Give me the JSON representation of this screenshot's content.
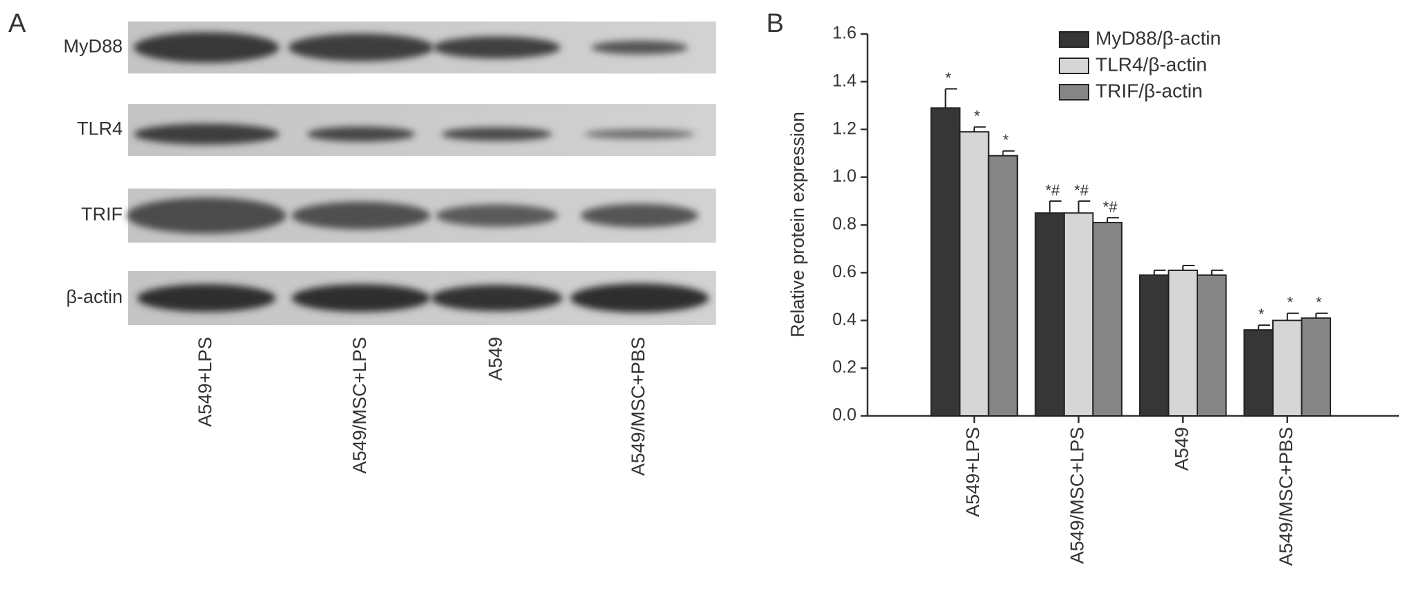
{
  "blot": {
    "panel_label": "A",
    "rows": [
      "MyD88",
      "TLR4",
      "TRIF",
      "β-actin"
    ],
    "lanes": [
      "A549+LPS",
      "A549/MSC+LPS",
      "A549",
      "A549/MSC+PBS"
    ]
  },
  "chart_data": {
    "type": "bar",
    "panel_label": "B",
    "ylabel": "Relative protein expression",
    "categories": [
      "A549+LPS",
      "A549/MSC+LPS",
      "A549",
      "A549/MSC+PBS"
    ],
    "series": [
      {
        "name": "MyD88/β-actin",
        "color": "#363636",
        "values": [
          1.29,
          0.85,
          0.59,
          0.36
        ],
        "errors": [
          0.08,
          0.05,
          0.02,
          0.02
        ],
        "annotations": [
          "*",
          "*#",
          null,
          "*"
        ]
      },
      {
        "name": "TLR4/β-actin",
        "color": "#d6d6d6",
        "values": [
          1.19,
          0.85,
          0.61,
          0.4
        ],
        "errors": [
          0.02,
          0.05,
          0.02,
          0.03
        ],
        "annotations": [
          "*",
          "*#",
          null,
          "*"
        ]
      },
      {
        "name": "TRIF/β-actin",
        "color": "#858585",
        "values": [
          1.09,
          0.81,
          0.59,
          0.41
        ],
        "errors": [
          0.02,
          0.02,
          0.02,
          0.02
        ],
        "annotations": [
          "*",
          "*#",
          null,
          "*"
        ]
      }
    ],
    "ylim": [
      0,
      1.6
    ],
    "yticks": [
      {
        "value": 0,
        "label": "0.0"
      },
      {
        "value": 0.2,
        "label": "0.2"
      },
      {
        "value": 0.4,
        "label": "0.4"
      },
      {
        "value": 0.6,
        "label": "0.6"
      },
      {
        "value": 0.8,
        "label": "0.8"
      },
      {
        "value": 1.0,
        "label": "1.0"
      },
      {
        "value": 1.2,
        "label": "1.2"
      },
      {
        "value": 1.4,
        "label": "1.4"
      },
      {
        "value": 1.6,
        "label": "1.6"
      }
    ],
    "legend": "upper right"
  }
}
